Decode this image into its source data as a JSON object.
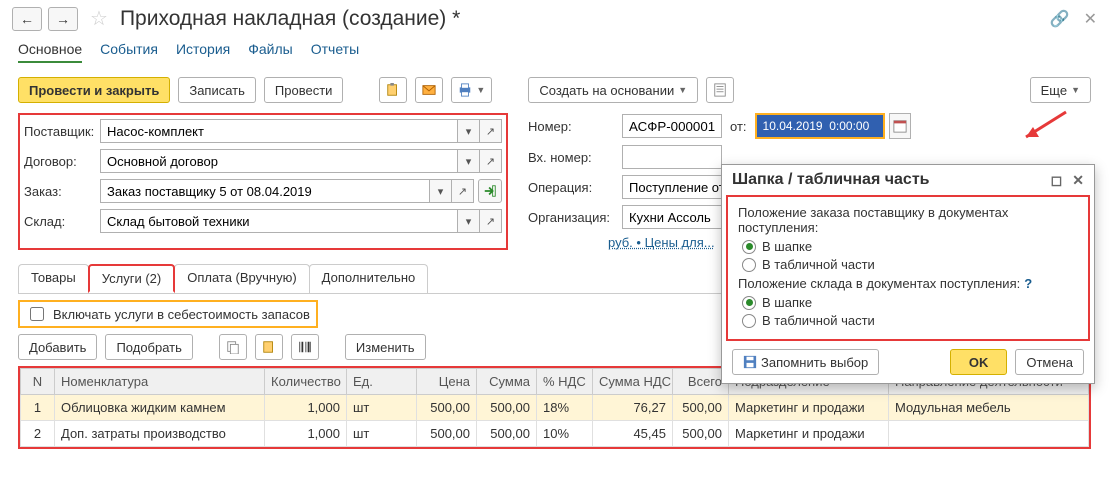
{
  "title": "Приходная накладная (создание) *",
  "nav": {
    "main": "Основное",
    "events": "События",
    "history": "История",
    "files": "Файлы",
    "reports": "Отчеты"
  },
  "toolbar": {
    "post_close": "Провести и закрыть",
    "save": "Записать",
    "post": "Провести",
    "create_from": "Создать на основании",
    "more": "Еще"
  },
  "fields": {
    "supplier_lbl": "Поставщик:",
    "supplier": "Насос-комплект",
    "contract_lbl": "Договор:",
    "contract": "Основной договор",
    "order_lbl": "Заказ:",
    "order": "Заказ поставщику 5 от 08.04.2019",
    "warehouse_lbl": "Склад:",
    "warehouse": "Склад бытовой техники",
    "number_lbl": "Номер:",
    "number": "АСФР-000001",
    "from_lbl": "от:",
    "date": "10.04.2019  0:00:00",
    "ext_number_lbl": "Вх. номер:",
    "ext_number": "",
    "operation_lbl": "Операция:",
    "operation": "Поступление от поставщика",
    "org_lbl": "Организация:",
    "org": "Кухни Ассоль",
    "currency_link": "руб. • Цены для..."
  },
  "tabs": {
    "goods": "Товары",
    "services": "Услуги (2)",
    "payment": "Оплата (Вручную)",
    "extra": "Дополнительно"
  },
  "chk_label": "Включать услуги в себестоимость запасов",
  "actions": {
    "add": "Добавить",
    "pick": "Подобрать",
    "edit": "Изменить"
  },
  "table": {
    "cols": {
      "n": "N",
      "nom": "Номенклатура",
      "qty": "Количество",
      "unit": "Ед.",
      "price": "Цена",
      "sum": "Сумма",
      "vatp": "% НДС",
      "vats": "Сумма НДС",
      "total": "Всего",
      "dept": "Подразделение",
      "dir": "Направление деятельности"
    },
    "rows": [
      {
        "n": "1",
        "nom": "Облицовка жидким камнем",
        "qty": "1,000",
        "unit": "шт",
        "price": "500,00",
        "sum": "500,00",
        "vatp": "18%",
        "vats": "76,27",
        "total": "500,00",
        "dept": "Маркетинг и продажи",
        "dir": "Модульная мебель"
      },
      {
        "n": "2",
        "nom": "Доп. затраты производство",
        "qty": "1,000",
        "unit": "шт",
        "price": "500,00",
        "sum": "500,00",
        "vatp": "10%",
        "vats": "45,45",
        "total": "500,00",
        "dept": "Маркетинг и продажи",
        "dir": ""
      }
    ]
  },
  "popup": {
    "title": "Шапка / табличная часть",
    "order_pos_lbl": "Положение заказа поставщику в документах поступления:",
    "in_header": "В шапке",
    "in_table": "В табличной части",
    "wh_pos_lbl": "Положение склада в документах поступления:",
    "remember": "Запомнить выбор",
    "ok": "OK",
    "cancel": "Отмена"
  },
  "colors": {
    "accent": "#ffe066",
    "highlight": "#e63939",
    "sel": "#3060b0"
  }
}
